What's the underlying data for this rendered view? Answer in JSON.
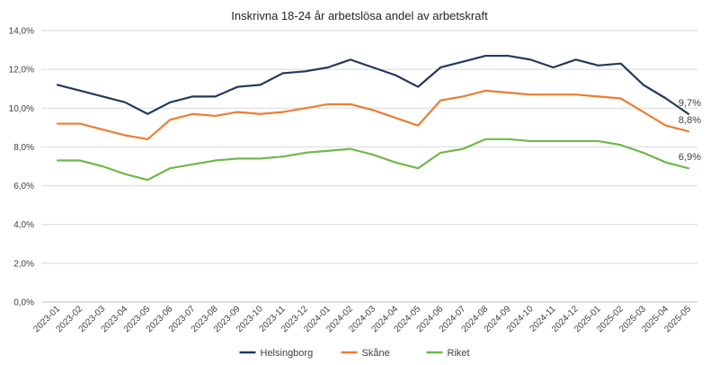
{
  "chart_data": {
    "type": "line",
    "title": "Inskrivna 18-24 år arbetslösa andel av arbetskraft",
    "xlabel": "",
    "ylabel": "",
    "ylim": [
      0,
      14
    ],
    "y_ticks": [
      0,
      2,
      4,
      6,
      8,
      10,
      12,
      14
    ],
    "y_tick_labels": [
      "0,0%",
      "2,0%",
      "4,0%",
      "6,0%",
      "8,0%",
      "10,0%",
      "12,0%",
      "14,0%"
    ],
    "grid": true,
    "legend_position": "bottom",
    "categories": [
      "2023-01",
      "2023-02",
      "2023-03",
      "2023-04",
      "2023-05",
      "2023-06",
      "2023-07",
      "2023-08",
      "2023-09",
      "2023-10",
      "2023-11",
      "2023-12",
      "2024-01",
      "2024-02",
      "2024-03",
      "2024-04",
      "2024-05",
      "2024-06",
      "2024-07",
      "2024-08",
      "2024-09",
      "2024-10",
      "2024-11",
      "2024-12",
      "2025-01",
      "2025-02",
      "2025-03",
      "2025-04",
      "2025-05"
    ],
    "series": [
      {
        "name": "Helsingborg",
        "color": "#203a5c",
        "values": [
          11.2,
          10.9,
          10.6,
          10.3,
          9.7,
          10.3,
          10.6,
          10.6,
          11.1,
          11.2,
          11.8,
          11.9,
          12.1,
          12.5,
          12.1,
          11.7,
          11.1,
          12.1,
          12.4,
          12.7,
          12.7,
          12.5,
          12.1,
          12.5,
          12.2,
          12.3,
          11.2,
          10.5,
          9.7
        ],
        "end_label": "9,7%"
      },
      {
        "name": "Skåne",
        "color": "#ed7d31",
        "values": [
          9.2,
          9.2,
          8.9,
          8.6,
          8.4,
          9.4,
          9.7,
          9.6,
          9.8,
          9.7,
          9.8,
          10.0,
          10.2,
          10.2,
          9.9,
          9.5,
          9.1,
          10.4,
          10.6,
          10.9,
          10.8,
          10.7,
          10.7,
          10.7,
          10.6,
          10.5,
          9.8,
          9.1,
          8.8
        ],
        "end_label": "8,8%"
      },
      {
        "name": "Riket",
        "color": "#70b84a",
        "values": [
          7.3,
          7.3,
          7.0,
          6.6,
          6.3,
          6.9,
          7.1,
          7.3,
          7.4,
          7.4,
          7.5,
          7.7,
          7.8,
          7.9,
          7.6,
          7.2,
          6.9,
          7.7,
          7.9,
          8.4,
          8.4,
          8.3,
          8.3,
          8.3,
          8.3,
          8.1,
          7.7,
          7.2,
          6.9
        ],
        "end_label": "6,9%"
      }
    ],
    "gridline_color": "#d9d9d9",
    "axis_color": "#bfbfbf"
  }
}
